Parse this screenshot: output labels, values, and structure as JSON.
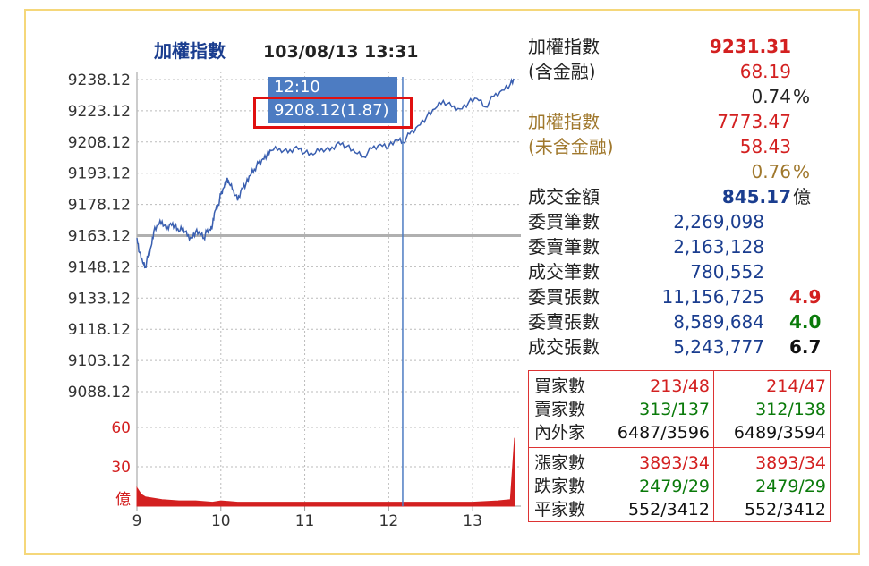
{
  "header": {
    "index_name": "加權指數",
    "datetime": "103/08/13 13:31"
  },
  "tooltip": {
    "time": "12:10",
    "value": "9208.12(1.87)"
  },
  "colors": {
    "line": "#3a5fb0",
    "volume": "#d32020",
    "ref_line": "#b0b0b0",
    "label_blue": "#1a3d8f",
    "red": "#d32020",
    "green": "#0a7a0a",
    "brown": "#a0782d"
  },
  "chart_data": {
    "type": "line",
    "price_axis": {
      "ticks": [
        "9238.12",
        "9223.12",
        "9208.12",
        "9193.12",
        "9178.12",
        "9163.12",
        "9148.12",
        "9133.12",
        "9118.12",
        "9103.12",
        "9088.12"
      ],
      "ylim": [
        9088.12,
        9238.12
      ]
    },
    "volume_axis": {
      "ticks": [
        "60",
        "30",
        "億"
      ],
      "ylim": [
        0,
        60
      ]
    },
    "x_ticks": [
      "9",
      "10",
      "11",
      "12",
      "13"
    ],
    "xlim": [
      9.0,
      13.5
    ],
    "reference_value": 9163.12,
    "cursor_time": 12.1667,
    "series": [
      {
        "x": [
          9.0,
          9.03,
          9.07,
          9.1,
          9.13,
          9.17,
          9.2,
          9.25,
          9.3,
          9.35,
          9.4,
          9.45,
          9.5,
          9.55,
          9.6,
          9.65,
          9.7,
          9.75,
          9.8,
          9.83,
          9.87,
          9.9,
          9.93,
          9.97,
          10.0,
          10.03,
          10.07,
          10.1,
          10.15,
          10.2,
          10.25,
          10.3,
          10.35,
          10.4,
          10.45,
          10.5,
          10.55,
          10.6,
          10.7,
          10.8,
          10.9,
          11.0,
          11.1,
          11.2,
          11.3,
          11.4,
          11.5,
          11.6,
          11.7,
          11.8,
          11.9,
          12.0,
          12.1,
          12.17,
          12.25,
          12.35,
          12.45,
          12.55,
          12.65,
          12.75,
          12.85,
          12.95,
          13.05,
          13.15,
          13.25,
          13.35,
          13.45,
          13.5
        ],
        "values": [
          9162,
          9155,
          9150,
          9148,
          9153,
          9158,
          9165,
          9168,
          9170,
          9166,
          9169,
          9168,
          9165,
          9167,
          9163,
          9162,
          9165,
          9164,
          9162,
          9165,
          9166,
          9168,
          9175,
          9178,
          9183,
          9186,
          9190,
          9188,
          9185,
          9180,
          9186,
          9188,
          9192,
          9195,
          9198,
          9200,
          9202,
          9204,
          9205,
          9203,
          9206,
          9203,
          9202,
          9205,
          9204,
          9208,
          9206,
          9203,
          9201,
          9205,
          9207,
          9206,
          9209,
          9208,
          9212,
          9216,
          9220,
          9224,
          9228,
          9225,
          9224,
          9227,
          9229,
          9225,
          9230,
          9233,
          9236,
          9238
        ]
      }
    ],
    "volume": {
      "x": [
        9.0,
        9.05,
        9.1,
        9.2,
        9.3,
        9.5,
        9.7,
        9.9,
        10.0,
        10.2,
        10.5,
        10.8,
        11.0,
        11.3,
        11.6,
        12.0,
        12.3,
        12.6,
        13.0,
        13.3,
        13.45,
        13.5
      ],
      "values": [
        14,
        9,
        7,
        6,
        5,
        4,
        4,
        3,
        4,
        3,
        3,
        3,
        3,
        3,
        3,
        3,
        3,
        3,
        3,
        4,
        5,
        52
      ]
    }
  },
  "stats": {
    "taiex_incl": {
      "label1": "加權指數",
      "label2": "(含金融)",
      "value": "9231.31",
      "change": "68.19",
      "pct": "0.74",
      "unit": "%"
    },
    "taiex_excl": {
      "label1": "加權指數",
      "label2": "(未含金融)",
      "value": "7773.47",
      "change": "58.43",
      "pct": "0.76",
      "unit": "%"
    },
    "turnover": {
      "label": "成交金額",
      "value": "845.17",
      "unit": "億"
    },
    "rows": [
      {
        "label": "委買筆數",
        "value": "2,269,098",
        "ratio": ""
      },
      {
        "label": "委賣筆數",
        "value": "2,163,128",
        "ratio": ""
      },
      {
        "label": "成交筆數",
        "value": "780,552",
        "ratio": ""
      },
      {
        "label": "委買張數",
        "value": "11,156,725",
        "ratio": "4.9"
      },
      {
        "label": "委賣張數",
        "value": "8,589,684",
        "ratio": "4.0"
      },
      {
        "label": "成交張數",
        "value": "5,243,777",
        "ratio": "6.7"
      }
    ]
  },
  "breadth": {
    "rows": [
      {
        "label": "買家數",
        "v1": "213/48",
        "v2": "214/47"
      },
      {
        "label": "賣家數",
        "v1": "313/137",
        "v2": "312/138"
      },
      {
        "label": "內外家",
        "v1": "6487/3596",
        "v2": "6489/3594"
      },
      {
        "label": "漲家數",
        "v1": "3893/34",
        "v2": "3893/34"
      },
      {
        "label": "跌家數",
        "v1": "2479/29",
        "v2": "2479/29"
      },
      {
        "label": "平家數",
        "v1": "552/3412",
        "v2": "552/3412"
      }
    ]
  }
}
